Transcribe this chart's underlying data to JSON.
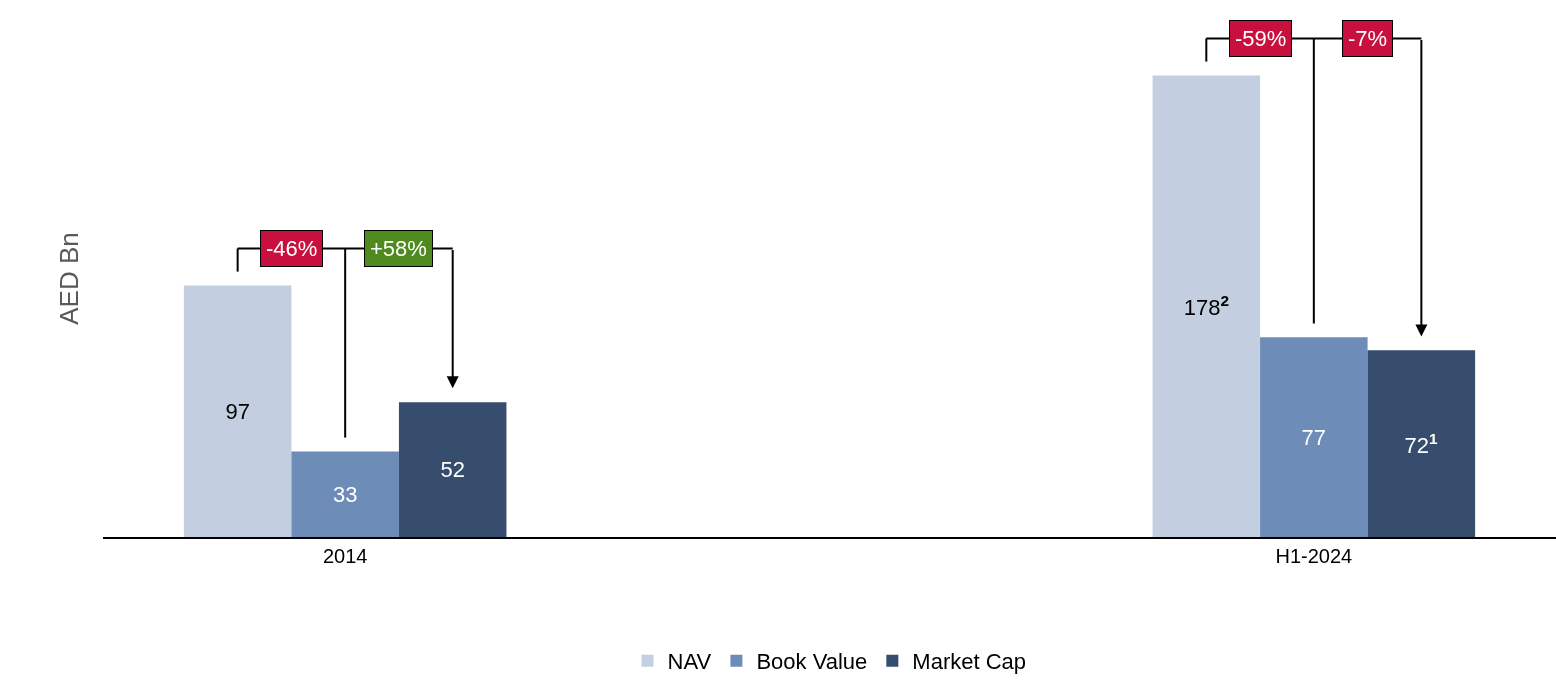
{
  "chart_data": {
    "type": "bar",
    "ylabel": "AED Bn",
    "categories": [
      "2014",
      "H1-2024"
    ],
    "series": [
      {
        "name": "NAV",
        "color": "#c3cfe1",
        "values": [
          97,
          178
        ],
        "value_labels": [
          "97",
          "178$^{2}$"
        ]
      },
      {
        "name": "Book Value",
        "color": "#6d8db8",
        "values": [
          33,
          77
        ],
        "value_labels": [
          "33",
          "77"
        ]
      },
      {
        "name": "Market Cap",
        "color": "#374d6d",
        "values": [
          52,
          72
        ],
        "value_labels": [
          "52",
          "72$^{1}$"
        ]
      }
    ],
    "annotations": [
      "-46%",
      "+58%",
      "-59%",
      "-7%"
    ],
    "legend": "bottom"
  }
}
